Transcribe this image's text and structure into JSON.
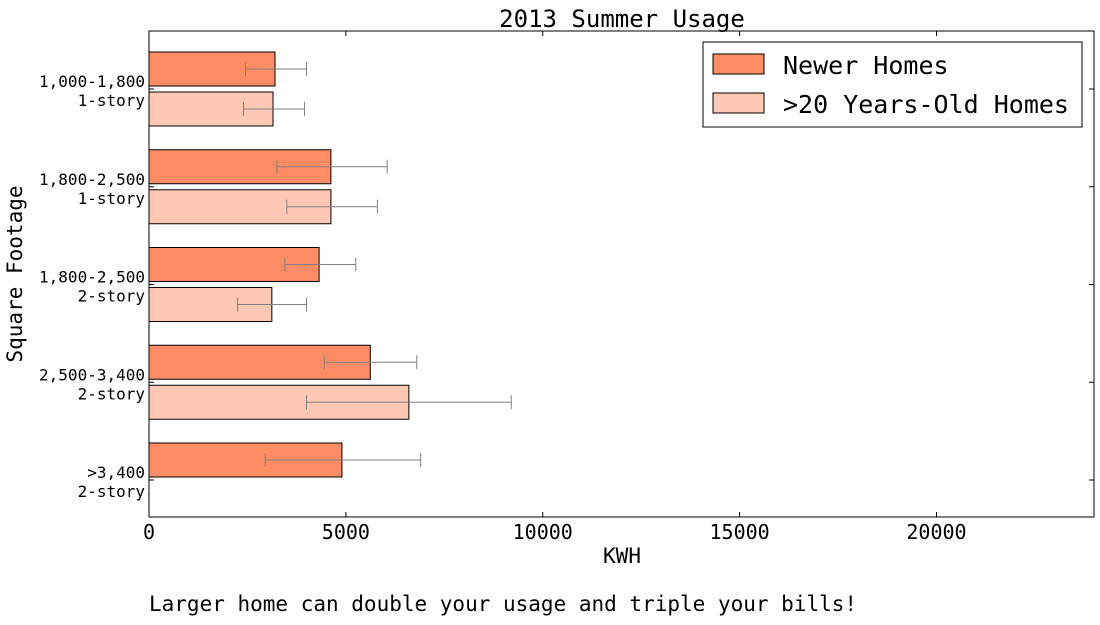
{
  "chart_data": {
    "type": "bar",
    "orientation": "horizontal",
    "title": "2013 Summer Usage",
    "xlabel": "KWH",
    "ylabel": "Square Footage",
    "xlim": [
      0,
      24000
    ],
    "xticks": [
      0,
      5000,
      10000,
      15000,
      20000
    ],
    "xtick_labels": [
      "0",
      "5000",
      "10000",
      "15000",
      "20000"
    ],
    "legend_position": "top-right",
    "grid": false,
    "categories": [
      {
        "line1": "1,000-1,800",
        "line2": "1-story"
      },
      {
        "line1": "1,800-2,500",
        "line2": "1-story"
      },
      {
        "line1": "1,800-2,500",
        "line2": "2-story"
      },
      {
        "line1": "2,500-3,400",
        "line2": "2-story"
      },
      {
        "line1": ">3,400",
        "line2": "2-story"
      }
    ],
    "series": [
      {
        "name": "Newer Homes",
        "color": "#ff8c64",
        "values": [
          3200,
          4620,
          4320,
          5620,
          4900
        ],
        "error_low": [
          2450,
          3250,
          3450,
          4450,
          2950
        ],
        "error_high": [
          4000,
          6050,
          5250,
          6800,
          6900
        ]
      },
      {
        "name": ">20 Years-Old Homes",
        "color": "#ffc8b4",
        "values": [
          3150,
          4620,
          3120,
          6600,
          null
        ],
        "error_low": [
          2400,
          3500,
          2250,
          4000,
          null
        ],
        "error_high": [
          3950,
          5800,
          4000,
          9200,
          null
        ]
      }
    ]
  },
  "caption": "Larger home can double your usage and triple your bills!"
}
